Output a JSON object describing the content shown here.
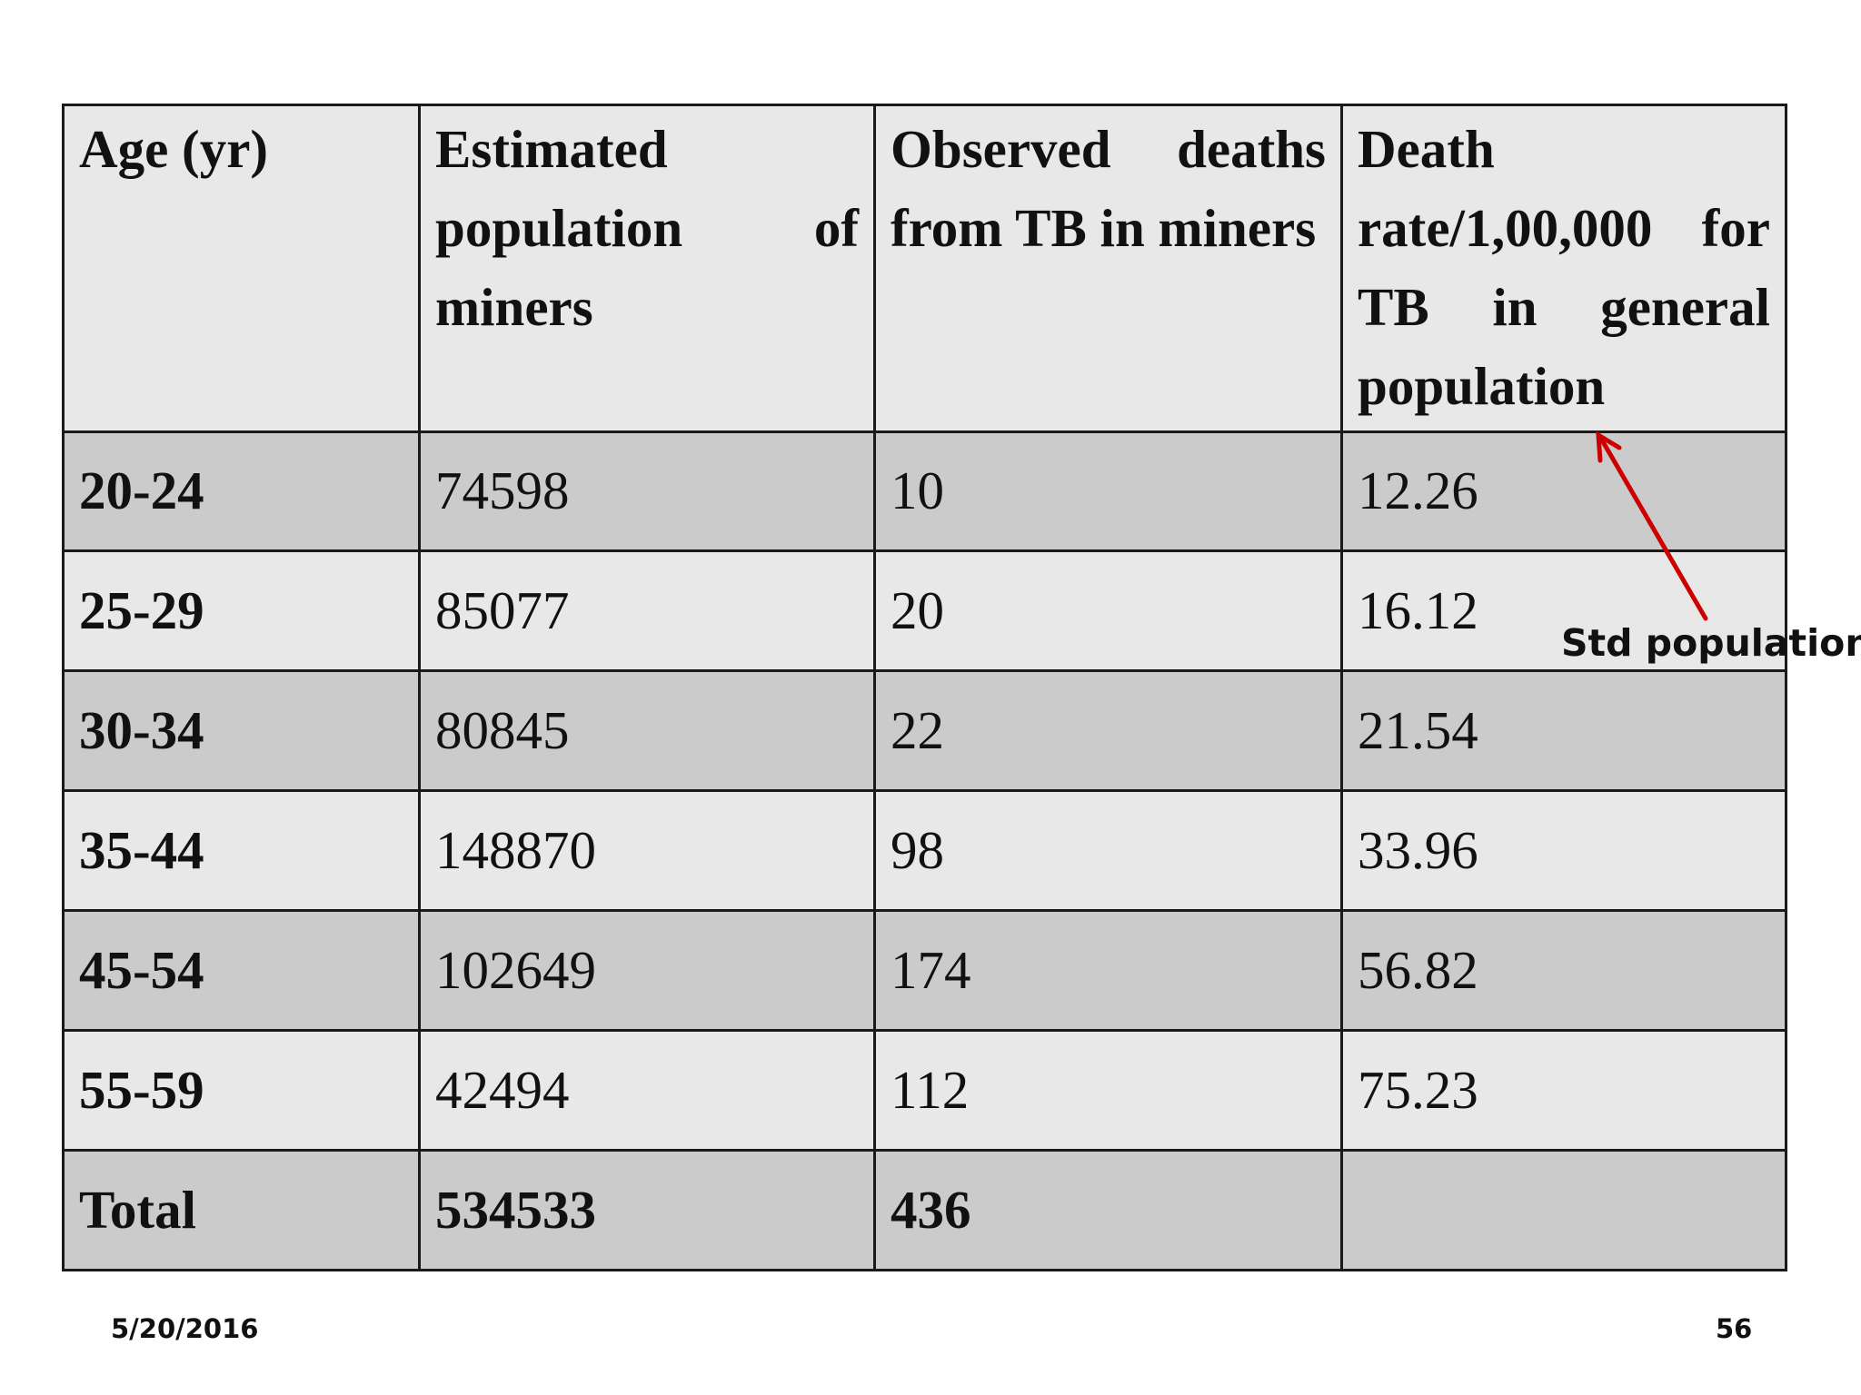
{
  "table": {
    "headers": [
      "Age (yr)",
      "Estimated population of miners",
      "Observed deaths from TB in miners",
      "Death rate/1,00,000 for TB in general population"
    ],
    "rows": [
      [
        "20-24",
        "74598",
        "10",
        "12.26"
      ],
      [
        "25-29",
        "85077",
        "20",
        "16.12"
      ],
      [
        "30-34",
        "80845",
        "22",
        "21.54"
      ],
      [
        "35-44",
        "148870",
        "98",
        "33.96"
      ],
      [
        "45-54",
        "102649",
        "174",
        "56.82"
      ],
      [
        "55-59",
        "42494",
        "112",
        "75.23"
      ]
    ],
    "total": [
      "Total",
      "534533",
      "436",
      ""
    ]
  },
  "annotation": {
    "label": "Std population",
    "arrow_color": "#cc0000"
  },
  "footer": {
    "date": "5/20/2016",
    "page": "56"
  },
  "colors": {
    "row_dark": "#cbcbcb",
    "row_light": "#e8e8e8",
    "border": "#1a1a1a"
  }
}
